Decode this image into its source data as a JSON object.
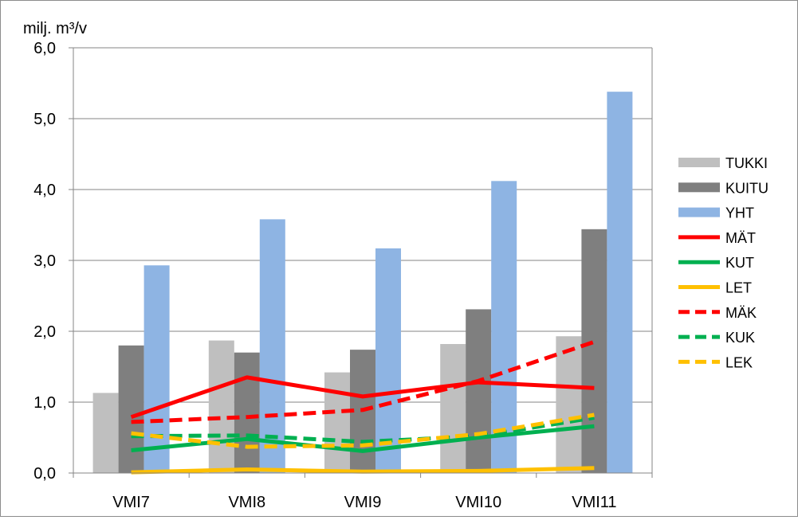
{
  "chart_data": {
    "type": "bar",
    "ylabel": "milj. m³/v",
    "ylim": [
      0,
      6
    ],
    "yticks": [
      0,
      1,
      2,
      3,
      4,
      5,
      6
    ],
    "ytick_labels": [
      "0,0",
      "1,0",
      "2,0",
      "3,0",
      "4,0",
      "5,0",
      "6,0"
    ],
    "grid": true,
    "legend_position": "right",
    "categories": [
      "VMI7",
      "VMI8",
      "VMI9",
      "VMI10",
      "VMI11"
    ],
    "bar_series": [
      {
        "name": "TUKKI",
        "color": "#bfbfbf",
        "values": [
          1.13,
          1.87,
          1.42,
          1.82,
          1.93
        ]
      },
      {
        "name": "KUITU",
        "color": "#7f7f7f",
        "values": [
          1.8,
          1.7,
          1.74,
          2.31,
          3.44
        ]
      },
      {
        "name": "YHT",
        "color": "#8eb4e3",
        "values": [
          2.93,
          3.58,
          3.17,
          4.12,
          5.38
        ]
      }
    ],
    "line_series": [
      {
        "name": "MÄT",
        "color": "#ff0000",
        "dashed": false,
        "values": [
          0.79,
          1.35,
          1.08,
          1.28,
          1.2
        ]
      },
      {
        "name": "KUT",
        "color": "#00b050",
        "dashed": false,
        "values": [
          0.32,
          0.48,
          0.31,
          0.5,
          0.66
        ]
      },
      {
        "name": "LET",
        "color": "#ffc000",
        "dashed": false,
        "values": [
          0.01,
          0.05,
          0.02,
          0.03,
          0.07
        ]
      },
      {
        "name": "MÄK",
        "color": "#ff0000",
        "dashed": true,
        "values": [
          0.72,
          0.79,
          0.89,
          1.3,
          1.85
        ]
      },
      {
        "name": "KUK",
        "color": "#00b050",
        "dashed": true,
        "values": [
          0.52,
          0.53,
          0.44,
          0.52,
          0.78
        ]
      },
      {
        "name": "LEK",
        "color": "#ffc000",
        "dashed": true,
        "values": [
          0.56,
          0.37,
          0.39,
          0.55,
          0.82
        ]
      }
    ]
  }
}
